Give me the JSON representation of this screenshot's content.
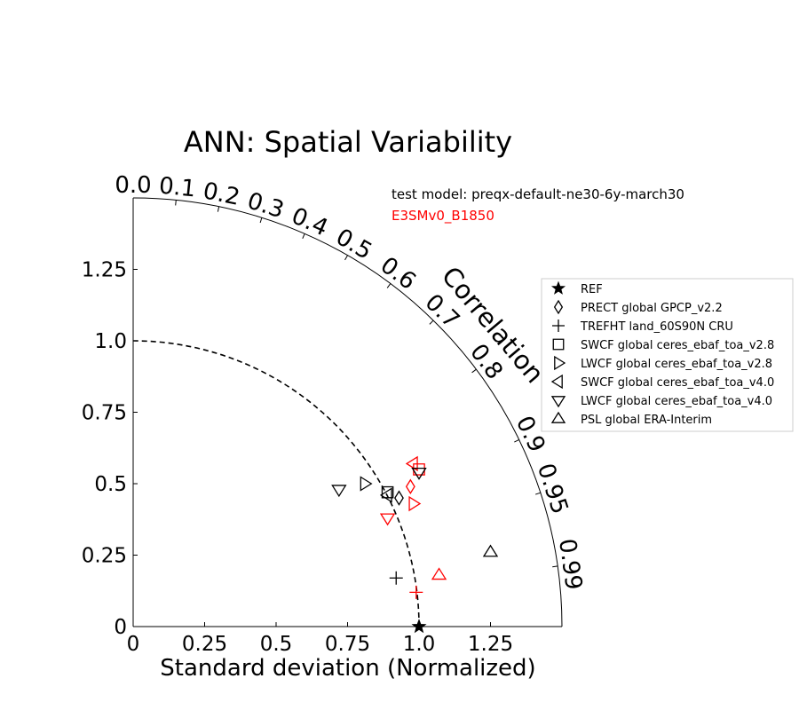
{
  "chart_data": {
    "type": "scatter",
    "subtype": "taylor-diagram",
    "title": "ANN: Spatial Variability",
    "xlabel": "Standard deviation (Normalized)",
    "angular_label": "Correlation",
    "std_range": [
      0,
      1.5
    ],
    "std_ticks": [
      {
        "v": 0,
        "label": "0"
      },
      {
        "v": 0.25,
        "label": "0.25"
      },
      {
        "v": 0.5,
        "label": "0.5"
      },
      {
        "v": 0.75,
        "label": "0.75"
      },
      {
        "v": 1.0,
        "label": "1.0"
      },
      {
        "v": 1.25,
        "label": "1.25"
      }
    ],
    "correlation_ticks": [
      {
        "v": 0.0,
        "label": "0.0"
      },
      {
        "v": 0.1,
        "label": "0.1"
      },
      {
        "v": 0.2,
        "label": "0.2"
      },
      {
        "v": 0.3,
        "label": "0.3"
      },
      {
        "v": 0.4,
        "label": "0.4"
      },
      {
        "v": 0.5,
        "label": "0.5"
      },
      {
        "v": 0.6,
        "label": "0.6"
      },
      {
        "v": 0.7,
        "label": "0.7"
      },
      {
        "v": 0.8,
        "label": "0.8"
      },
      {
        "v": 0.9,
        "label": "0.9"
      },
      {
        "v": 0.95,
        "label": "0.95"
      },
      {
        "v": 0.99,
        "label": "0.99"
      }
    ],
    "reference_std": 1.0,
    "models": [
      {
        "name": "test model: preqx-default-ne30-6y-march30",
        "color": "#000000"
      },
      {
        "name": "E3SMv0_B1850",
        "color": "#ff0000"
      }
    ],
    "legend_position": "right",
    "series": [
      {
        "name": "REF",
        "marker": "star",
        "points": [
          {
            "x": 1.0,
            "y": 0.0,
            "model": 0
          }
        ]
      },
      {
        "name": "PRECT global GPCP_v2.2",
        "marker": "diamond",
        "points": [
          {
            "x": 0.93,
            "y": 0.45,
            "model": 0
          },
          {
            "x": 0.97,
            "y": 0.49,
            "model": 1
          }
        ]
      },
      {
        "name": "TREFHT land_60S90N CRU",
        "marker": "plus",
        "points": [
          {
            "x": 0.92,
            "y": 0.17,
            "model": 0
          },
          {
            "x": 0.99,
            "y": 0.12,
            "model": 1
          }
        ]
      },
      {
        "name": "SWCF global ceres_ebaf_toa_v2.8",
        "marker": "square",
        "points": [
          {
            "x": 0.89,
            "y": 0.47,
            "model": 0
          },
          {
            "x": 1.0,
            "y": 0.55,
            "model": 1
          }
        ]
      },
      {
        "name": "LWCF global ceres_ebaf_toa_v2.8",
        "marker": "triangle-right",
        "points": [
          {
            "x": 0.81,
            "y": 0.5,
            "model": 0
          },
          {
            "x": 0.98,
            "y": 0.43,
            "model": 1
          }
        ]
      },
      {
        "name": "SWCF global ceres_ebaf_toa_v4.0",
        "marker": "triangle-left",
        "points": [
          {
            "x": 0.89,
            "y": 0.46,
            "model": 0
          },
          {
            "x": 0.98,
            "y": 0.57,
            "model": 1
          }
        ]
      },
      {
        "name": "LWCF global ceres_ebaf_toa_v4.0",
        "marker": "triangle-down",
        "points": [
          {
            "x": 0.72,
            "y": 0.48,
            "model": 0
          },
          {
            "x": 0.89,
            "y": 0.38,
            "model": 1
          },
          {
            "x": 1.0,
            "y": 0.54,
            "model": 0
          }
        ]
      },
      {
        "name": "PSL global ERA-Interim",
        "marker": "triangle-up",
        "points": [
          {
            "x": 1.25,
            "y": 0.26,
            "model": 0
          },
          {
            "x": 1.07,
            "y": 0.18,
            "model": 1
          }
        ]
      }
    ]
  }
}
